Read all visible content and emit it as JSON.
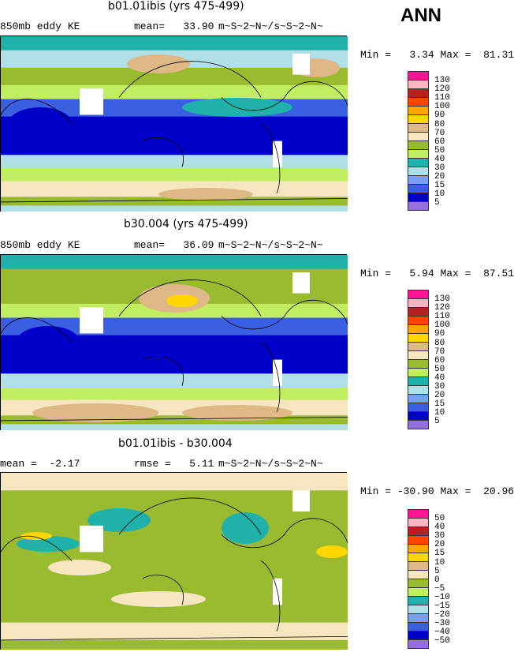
{
  "header": {
    "season": "ANN"
  },
  "palette": [
    "#ff1493",
    "#ffb6c1",
    "#b22222",
    "#ff4500",
    "#ffa500",
    "#ffd700",
    "#deb887",
    "#f5e6c0",
    "#9aba30",
    "#c0ee60",
    "#20b2aa",
    "#b0e0e6",
    "#7b9ff0",
    "#3a5fe0",
    "#0000c8",
    "#9370db"
  ],
  "panels": [
    {
      "title": "b01.01ibis (yrs 475-499)",
      "left_label": "850mb eddy KE",
      "stat_label": "mean=",
      "stat_value": "33.90",
      "units": "m~S~2~N~/s~S~2~N~",
      "min_label": "Min =",
      "min": "3.34",
      "max_label": "Max =",
      "max": "81.31",
      "levels": [
        "130",
        "120",
        "110",
        "100",
        "90",
        "80",
        "70",
        "60",
        "50",
        "40",
        "30",
        "20",
        "15",
        "10",
        "5"
      ]
    },
    {
      "title": "b30.004 (yrs 475-499)",
      "left_label": "850mb eddy KE",
      "stat_label": "mean=",
      "stat_value": "36.09",
      "units": "m~S~2~N~/s~S~2~N~",
      "min_label": "Min =",
      "min": "5.94",
      "max_label": "Max =",
      "max": "87.51",
      "levels": [
        "130",
        "120",
        "110",
        "100",
        "90",
        "80",
        "70",
        "60",
        "50",
        "40",
        "30",
        "20",
        "15",
        "10",
        "5"
      ]
    },
    {
      "title": "b01.01ibis - b30.004",
      "left_label": "mean =",
      "left_value": "-2.17",
      "stat_label": "rmse =",
      "stat_value": "5.11",
      "units": "m~S~2~N~/s~S~2~N~",
      "min_label": "Min =",
      "min": "-30.90",
      "max_label": "Max =",
      "max": "20.96",
      "levels": [
        "50",
        "40",
        "30",
        "20",
        "15",
        "10",
        "5",
        "0",
        "−5",
        "−10",
        "−15",
        "−20",
        "−30",
        "−40",
        "−50"
      ]
    }
  ]
}
